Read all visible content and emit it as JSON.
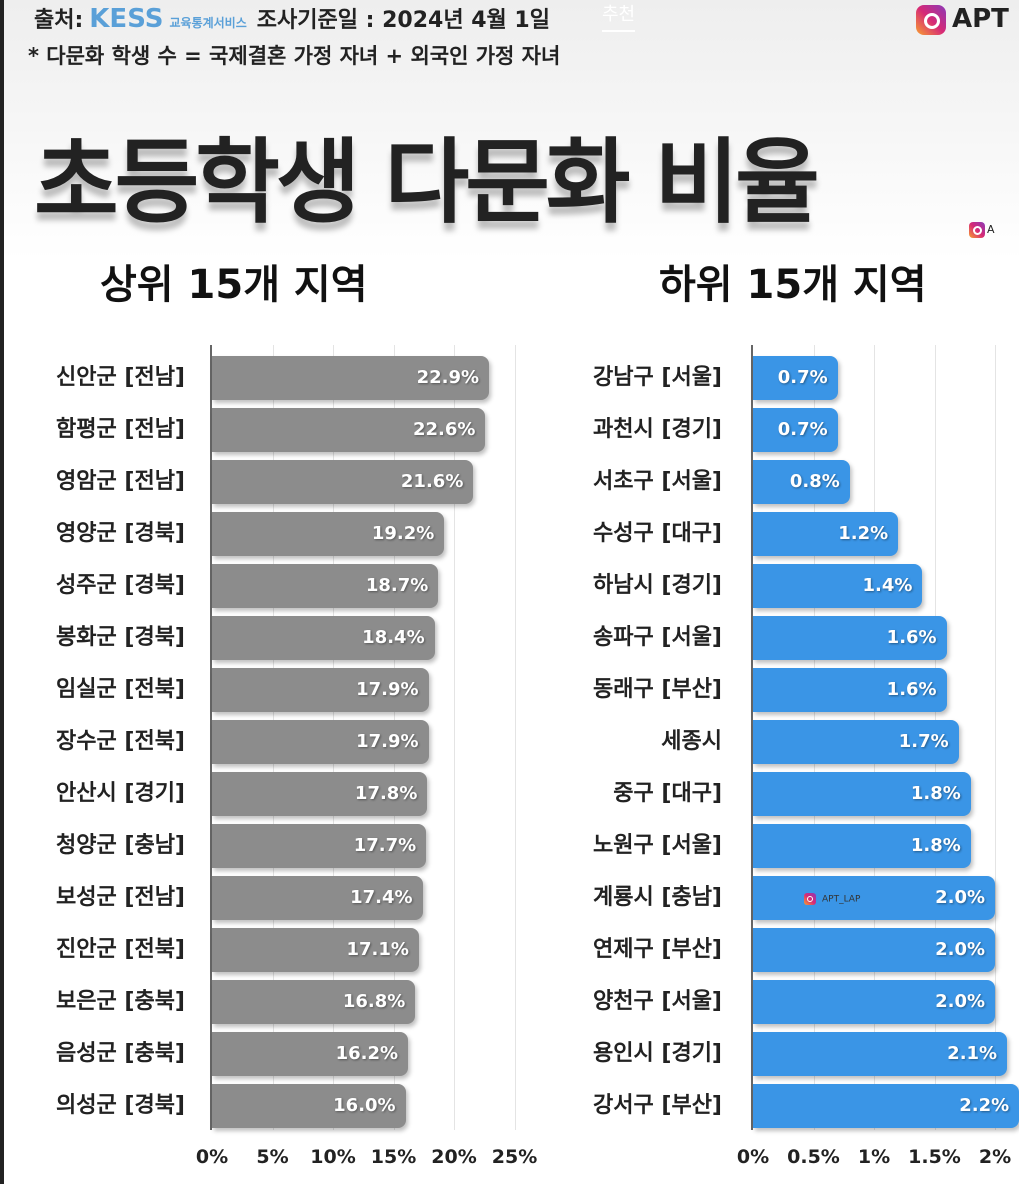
{
  "header": {
    "source_prefix": "출처:",
    "source_logo": "KESS",
    "source_service": "교육통계서비스",
    "base_date": "조사기준일 : 2024년 4월 1일",
    "overlay_tab": "추천",
    "instagram_handle": "APT",
    "note": "* 다문화 학생 수 = 국제결혼 가정 자녀 + 외국인 가정 자녀",
    "title": "초등학생 다문화 비율",
    "watermark_small": "A",
    "watermark_bar": "APT_LAP"
  },
  "colors": {
    "top": "#8c8c8c",
    "bottom": "#3a95e6"
  },
  "chart_data": [
    {
      "type": "bar",
      "orientation": "horizontal",
      "title": "상위 15개 지역",
      "xlim": [
        0,
        25
      ],
      "ticks": [
        "0%",
        "5%",
        "10%",
        "15%",
        "20%",
        "25%"
      ],
      "tick_values": [
        0,
        5,
        10,
        15,
        20,
        25
      ],
      "categories": [
        "신안군 [전남]",
        "함평군 [전남]",
        "영암군 [전남]",
        "영양군 [경북]",
        "성주군 [경북]",
        "봉화군 [경북]",
        "임실군 [전북]",
        "장수군 [전북]",
        "안산시 [경기]",
        "청양군 [충남]",
        "보성군 [전남]",
        "진안군 [전북]",
        "보은군 [충북]",
        "음성군 [충북]",
        "의성군 [경북]"
      ],
      "values": [
        22.9,
        22.6,
        21.6,
        19.2,
        18.7,
        18.4,
        17.9,
        17.9,
        17.8,
        17.7,
        17.4,
        17.1,
        16.8,
        16.2,
        16.0
      ],
      "labels": [
        "22.9%",
        "22.6%",
        "21.6%",
        "19.2%",
        "18.7%",
        "18.4%",
        "17.9%",
        "17.9%",
        "17.8%",
        "17.7%",
        "17.4%",
        "17.1%",
        "16.8%",
        "16.2%",
        "16.0%"
      ]
    },
    {
      "type": "bar",
      "orientation": "horizontal",
      "title": "하위 15개 지역",
      "xlim": [
        0,
        2.2
      ],
      "ticks": [
        "0%",
        "0.5%",
        "1%",
        "1.5%",
        "2%"
      ],
      "tick_values": [
        0,
        0.5,
        1,
        1.5,
        2
      ],
      "categories": [
        "강남구 [서울]",
        "과천시 [경기]",
        "서초구 [서울]",
        "수성구 [대구]",
        "하남시 [경기]",
        "송파구 [서울]",
        "동래구 [부산]",
        "세종시",
        "중구 [대구]",
        "노원구 [서울]",
        "계룡시 [충남]",
        "연제구 [부산]",
        "양천구 [서울]",
        "용인시 [경기]",
        "강서구 [부산]"
      ],
      "values": [
        0.7,
        0.7,
        0.8,
        1.2,
        1.4,
        1.6,
        1.6,
        1.7,
        1.8,
        1.8,
        2.0,
        2.0,
        2.0,
        2.1,
        2.2
      ],
      "labels": [
        "0.7%",
        "0.7%",
        "0.8%",
        "1.2%",
        "1.4%",
        "1.6%",
        "1.6%",
        "1.7%",
        "1.8%",
        "1.8%",
        "2.0%",
        "2.0%",
        "2.0%",
        "2.1%",
        "2.2%"
      ]
    }
  ]
}
